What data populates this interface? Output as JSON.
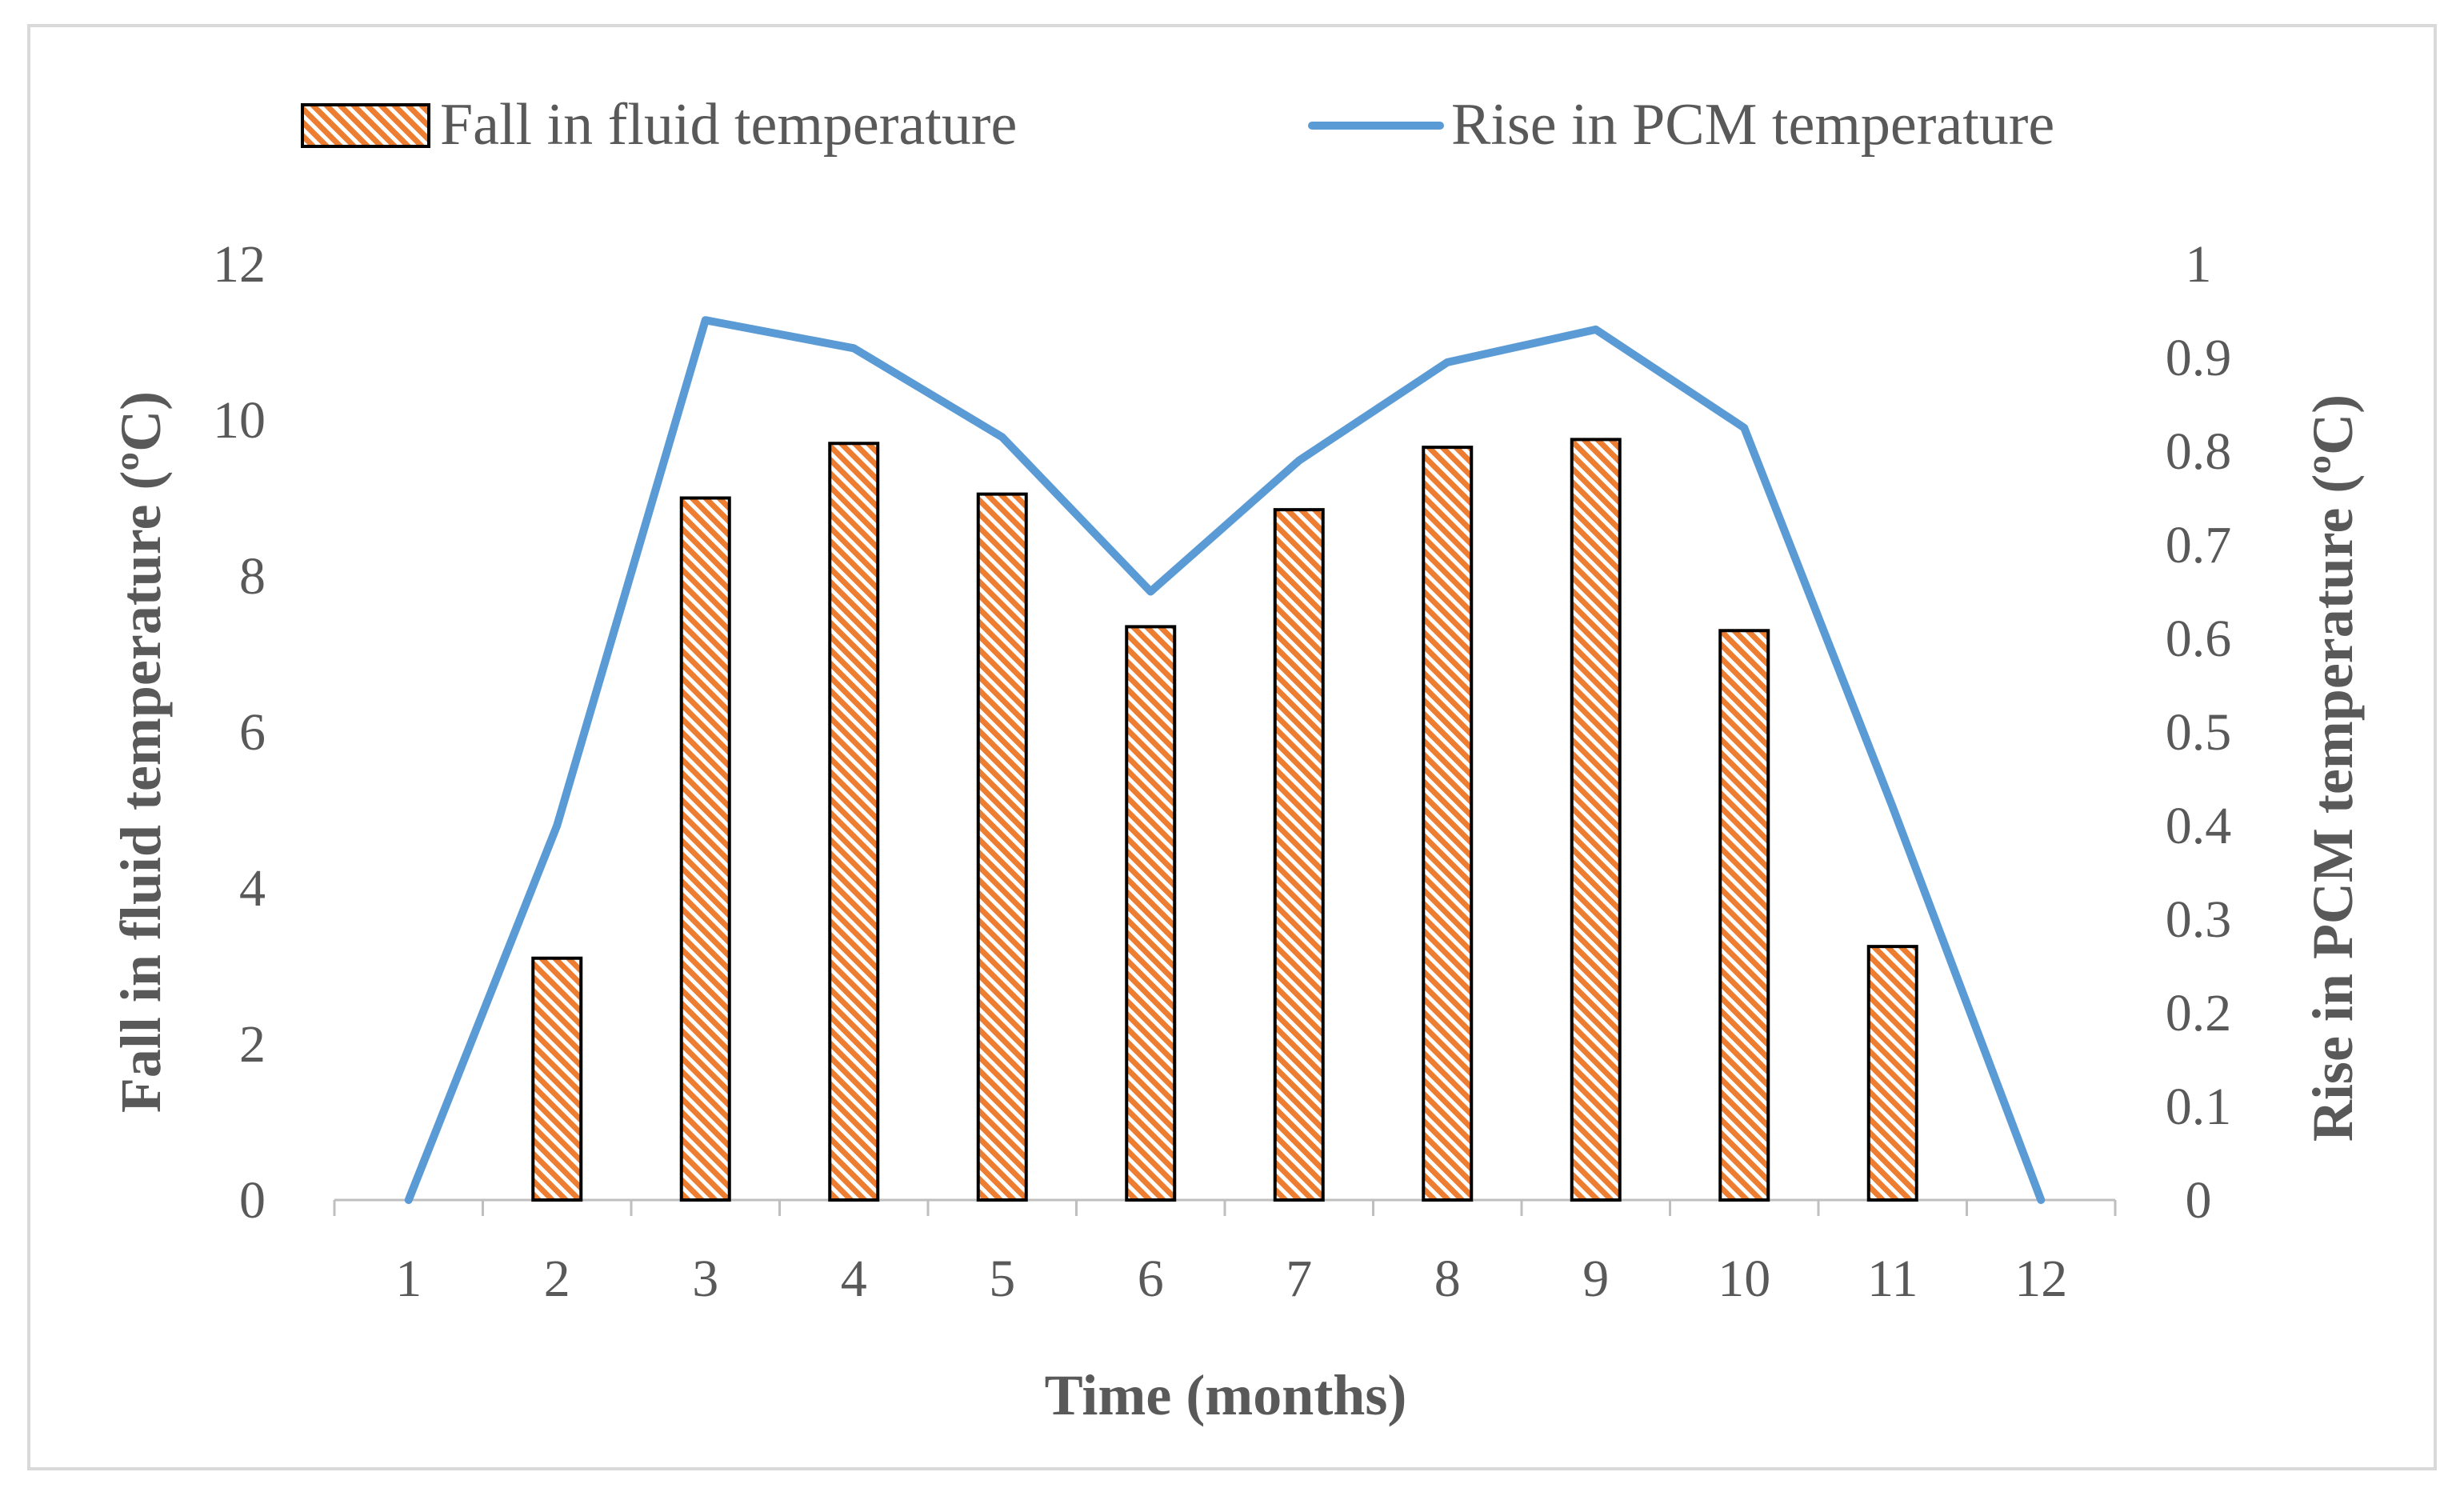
{
  "chart_data": {
    "type": "bar+line",
    "title": "",
    "xlabel": "Time (months)",
    "ylabel": "Fall in fluid temperature (ºC)",
    "y2label": "Rise in PCM temperature (ºC)",
    "categories": [
      "1",
      "2",
      "3",
      "4",
      "5",
      "6",
      "7",
      "8",
      "9",
      "10",
      "11",
      "12"
    ],
    "ylim": [
      0,
      12
    ],
    "yticks": [
      "0",
      "2",
      "4",
      "6",
      "8",
      "10",
      "12"
    ],
    "y2lim": [
      0,
      1
    ],
    "y2ticks": [
      "0",
      "0.1",
      "0.2",
      "0.3",
      "0.4",
      "0.5",
      "0.6",
      "0.7",
      "0.8",
      "0.9",
      "1"
    ],
    "series": [
      {
        "name": "Fall in fluid temperature",
        "kind": "bar",
        "axis": "left",
        "values": [
          0,
          3.1,
          9.0,
          9.7,
          9.05,
          7.35,
          8.85,
          9.65,
          9.75,
          7.3,
          3.25,
          0
        ]
      },
      {
        "name": "Rise in PCM temperature",
        "kind": "line",
        "axis": "right",
        "values": [
          0,
          0.4,
          0.94,
          0.91,
          0.815,
          0.65,
          0.79,
          0.895,
          0.93,
          0.825,
          0.42,
          0
        ]
      }
    ],
    "legend": "top",
    "grid": false,
    "colors": {
      "bar_fill": "#ED7D31",
      "bar_stroke": "#000000",
      "line": "#5B9BD5",
      "axis": "#bfbfbf",
      "text": "#595959"
    }
  }
}
